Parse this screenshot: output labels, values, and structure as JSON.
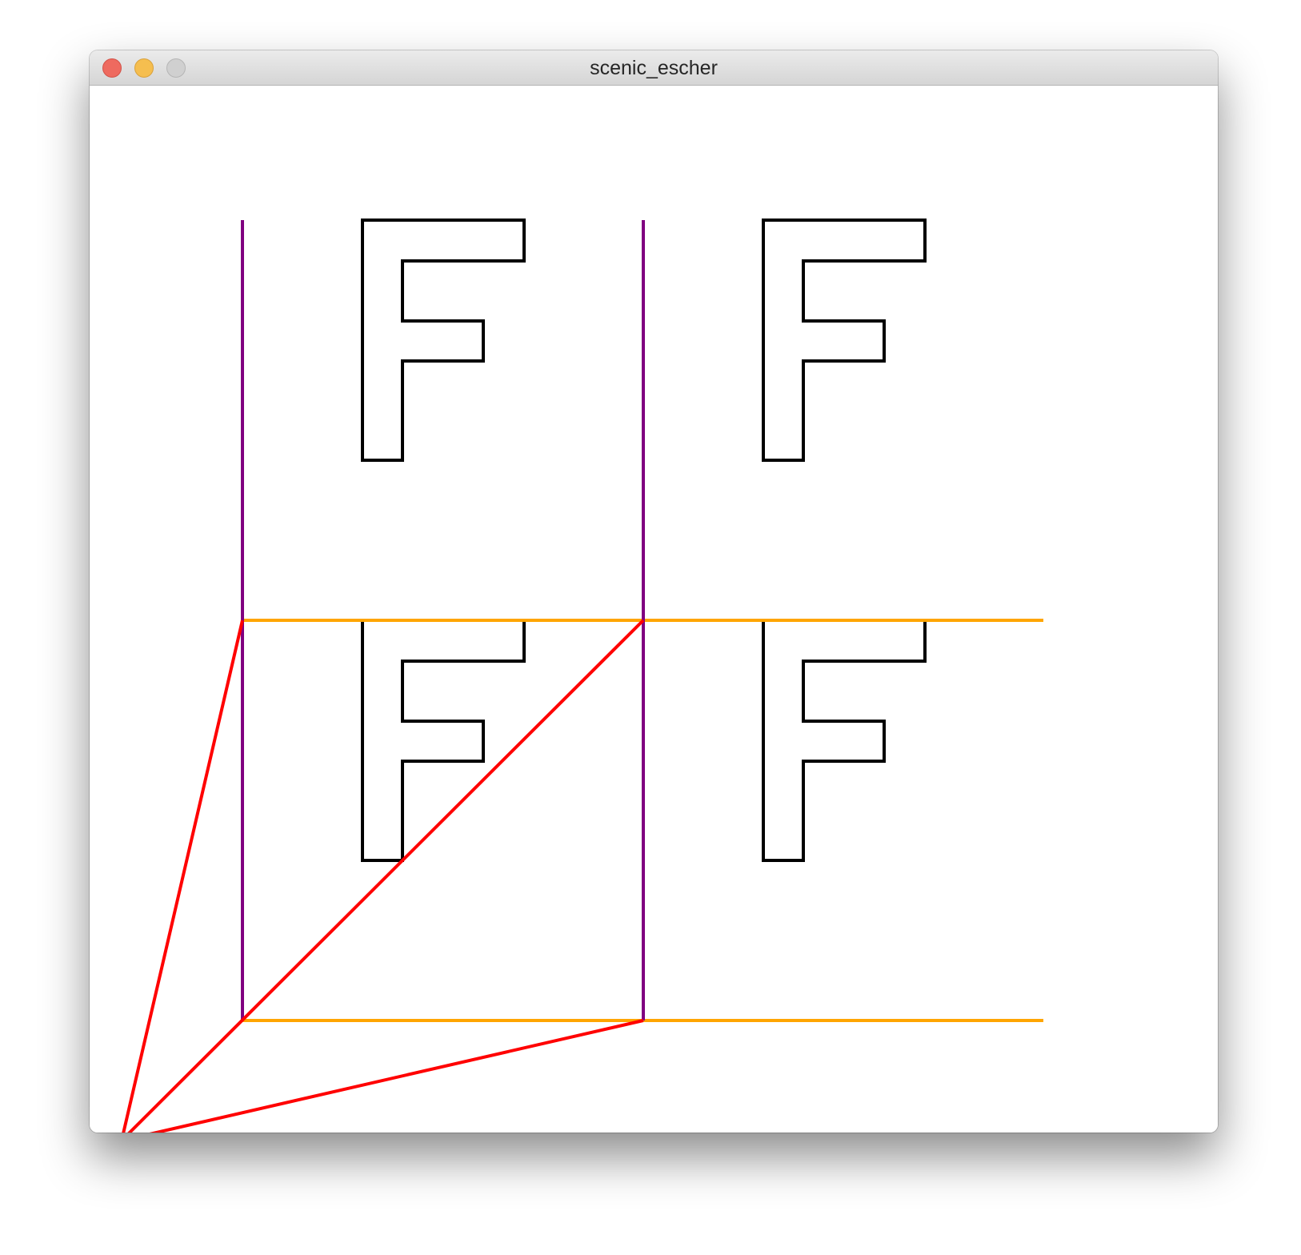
{
  "window": {
    "title": "scenic_escher"
  },
  "traffic_lights": {
    "close_color": "#ee6a5f",
    "minimize_color": "#f5be4f",
    "maximize_color": "#d0d0d0"
  },
  "scene": {
    "icons": [
      "f-shape-icon"
    ],
    "colors": {
      "f_outline": "#000000",
      "vertical_box_edges": "#800080",
      "horizontal_box_edges": "#ffa500",
      "perspective_lines": "#ff0000"
    },
    "f_shapes_count": 4
  }
}
